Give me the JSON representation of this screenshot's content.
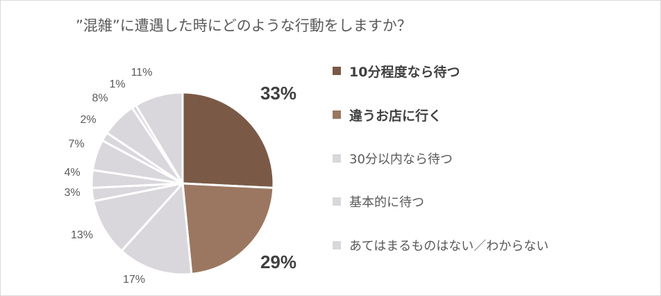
{
  "chart_data": {
    "type": "pie",
    "title": "”混雑”に遭遇した時にどのような行動をしますか？",
    "start_angle_deg": 0,
    "direction": "clockwise",
    "slices": [
      {
        "label": "10分程度なら待つ",
        "value": 33,
        "display": "33%",
        "color": "#7a5a47",
        "highlight": true
      },
      {
        "label": "違うお店に行く",
        "value": 29,
        "display": "29%",
        "color": "#9b7762",
        "highlight": true
      },
      {
        "label": "",
        "value": 17,
        "display": "17%",
        "color": "#d9d7dc",
        "highlight": false
      },
      {
        "label": "",
        "value": 13,
        "display": "13%",
        "color": "#d9d7dc",
        "highlight": false
      },
      {
        "label": "",
        "value": 3,
        "display": "3%",
        "color": "#d9d7dc",
        "highlight": false
      },
      {
        "label": "",
        "value": 4,
        "display": "4%",
        "color": "#d9d7dc",
        "highlight": false
      },
      {
        "label": "",
        "value": 7,
        "display": "7%",
        "color": "#d9d7dc",
        "highlight": false
      },
      {
        "label": "",
        "value": 2,
        "display": "2%",
        "color": "#d9d7dc",
        "highlight": false
      },
      {
        "label": "",
        "value": 8,
        "display": "8%",
        "color": "#d9d7dc",
        "highlight": false
      },
      {
        "label": "",
        "value": 1,
        "display": "1%",
        "color": "#d9d7dc",
        "highlight": false
      },
      {
        "label": "",
        "value": 11,
        "display": "11%",
        "color": "#d9d7dc",
        "highlight": false
      }
    ],
    "legend": {
      "position": "right",
      "items": [
        {
          "label": "10分程度なら待つ",
          "color": "#7a5a47",
          "highlight": true
        },
        {
          "label": "違うお店に行く",
          "color": "#9b7762",
          "highlight": true
        },
        {
          "label": "30分以内なら待つ",
          "color": "#d9d7dc",
          "highlight": false
        },
        {
          "label": "基本的に待つ",
          "color": "#d9d7dc",
          "highlight": false
        },
        {
          "label": "あてはまるものはない／わからない",
          "color": "#d9d7dc",
          "highlight": false
        }
      ]
    }
  }
}
